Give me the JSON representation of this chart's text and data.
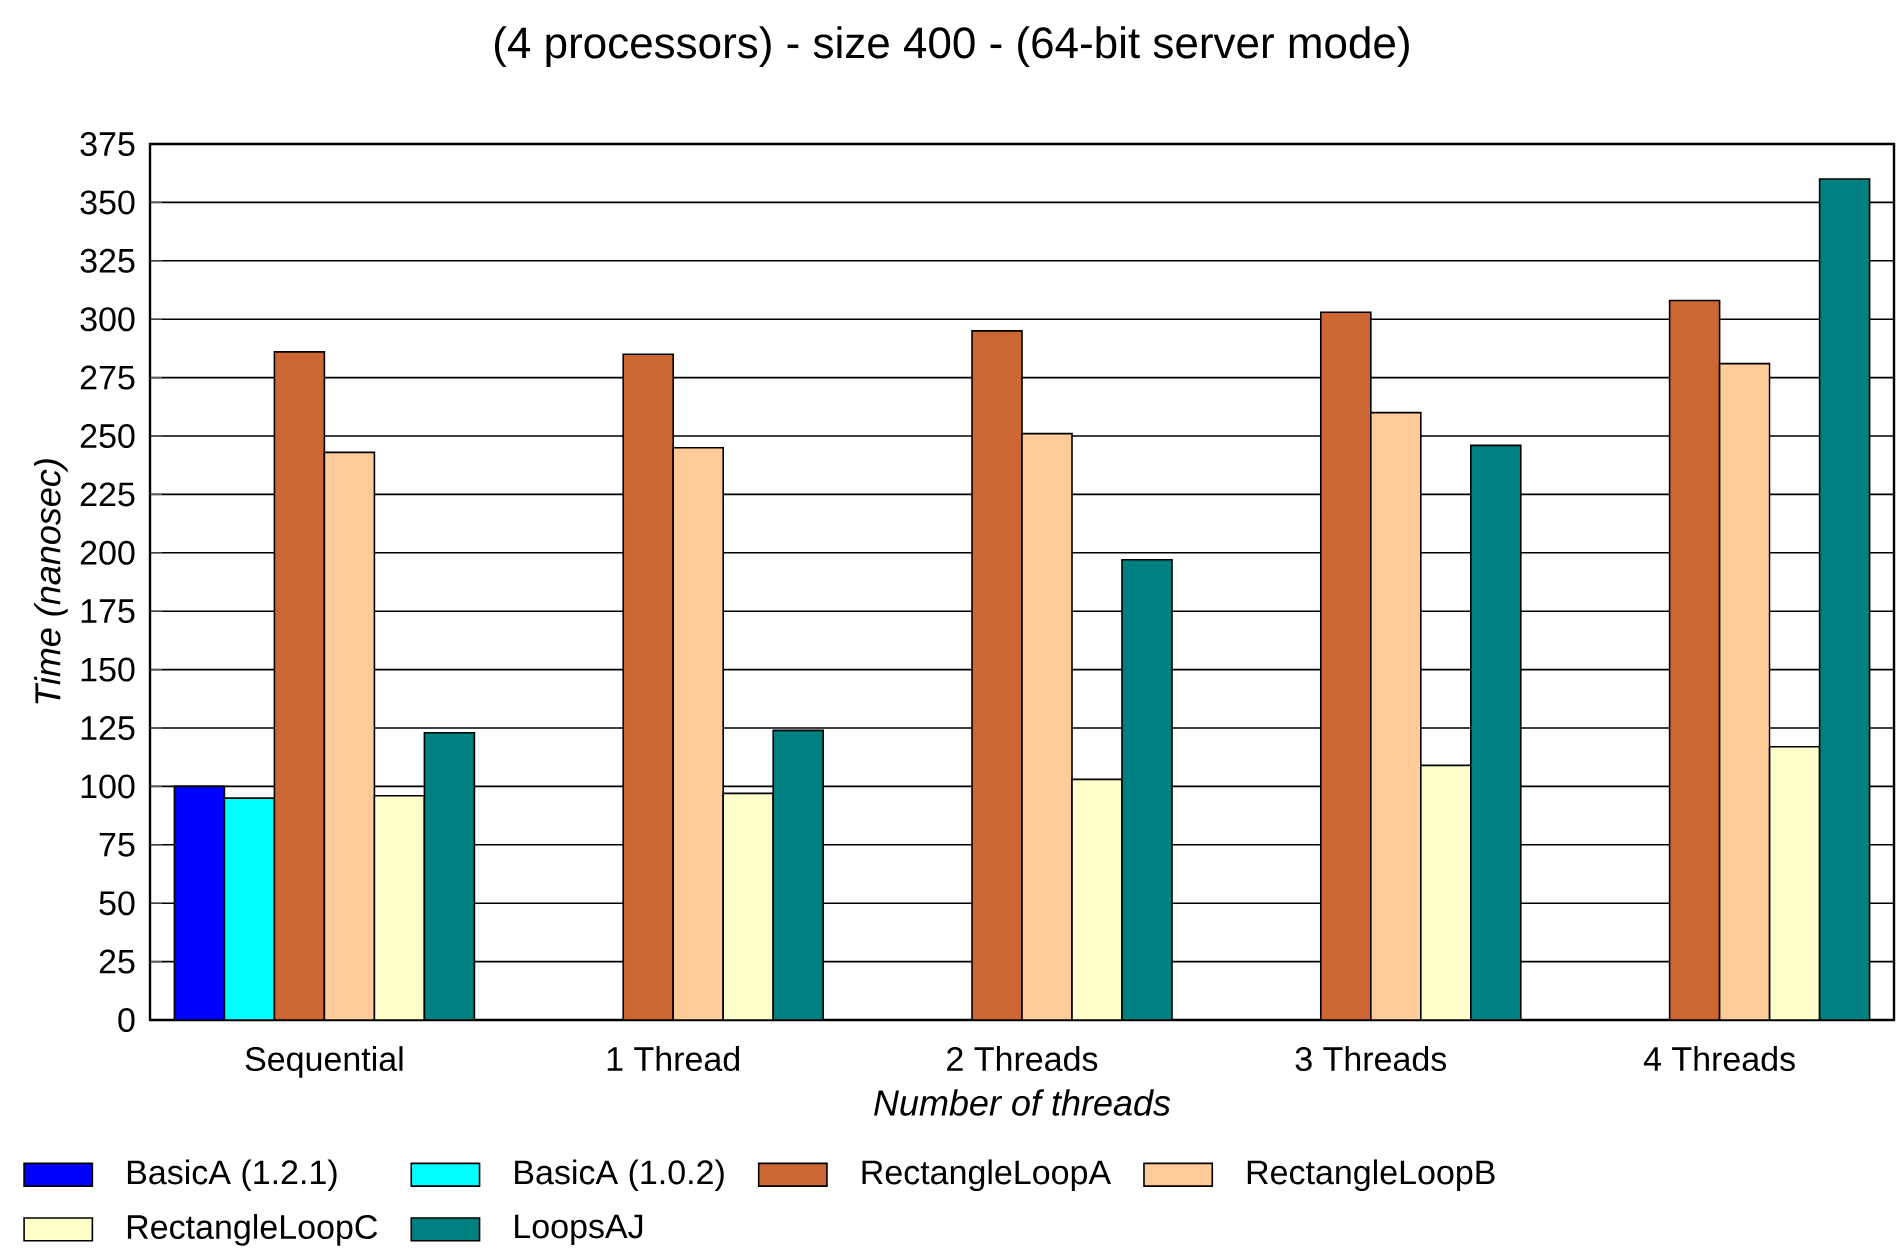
{
  "chart_data": {
    "type": "bar",
    "title": "(4 processors)  -  size 400  -  (64-bit server mode)",
    "xlabel": "Number of threads",
    "ylabel": "Time (nanosec)",
    "categories": [
      "Sequential",
      "1 Thread",
      "2 Threads",
      "3 Threads",
      "4 Threads"
    ],
    "series": [
      {
        "name": "BasicA (1.2.1)",
        "color": "#0000ff",
        "values": [
          100,
          null,
          null,
          null,
          null
        ]
      },
      {
        "name": "BasicA (1.0.2)",
        "color": "#00ffff",
        "values": [
          95,
          null,
          null,
          null,
          null
        ]
      },
      {
        "name": "RectangleLoopA",
        "color": "#cc6633",
        "values": [
          286,
          285,
          295,
          303,
          308
        ]
      },
      {
        "name": "RectangleLoopB",
        "color": "#ffcc99",
        "values": [
          243,
          245,
          251,
          260,
          281
        ]
      },
      {
        "name": "RectangleLoopC",
        "color": "#ffffcc",
        "values": [
          96,
          97,
          103,
          109,
          117
        ]
      },
      {
        "name": "LoopsAJ",
        "color": "#008080",
        "values": [
          123,
          124,
          197,
          246,
          360
        ]
      }
    ],
    "ylim": [
      0,
      375
    ],
    "yticks": [
      0,
      25,
      50,
      75,
      100,
      125,
      150,
      175,
      200,
      225,
      250,
      275,
      300,
      325,
      350,
      375
    ],
    "grid": "y",
    "legend": "bottom"
  }
}
